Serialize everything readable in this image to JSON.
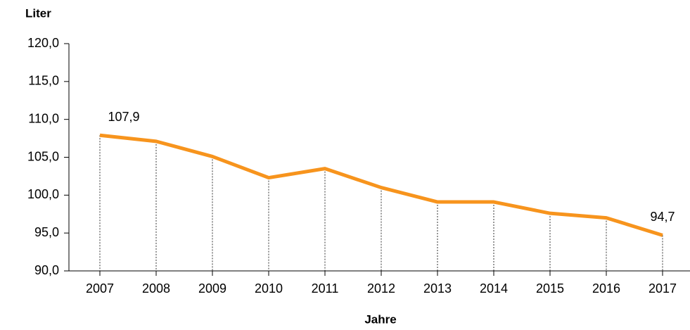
{
  "chart_data": {
    "type": "line",
    "y_label": "Liter",
    "x_label": "Jahre",
    "categories": [
      "2007",
      "2008",
      "2009",
      "2010",
      "2011",
      "2012",
      "2013",
      "2014",
      "2015",
      "2016",
      "2017"
    ],
    "series": [
      {
        "name": "Liter",
        "color": "#f7941d",
        "values": [
          107.9,
          107.1,
          105.1,
          102.3,
          103.5,
          101.0,
          99.1,
          99.1,
          97.6,
          97.0,
          94.7
        ],
        "value_labels": [
          "107,9",
          null,
          null,
          null,
          null,
          null,
          null,
          null,
          null,
          null,
          "94,7"
        ]
      }
    ],
    "ylim": [
      90,
      120
    ],
    "yticks": [
      {
        "value": 90,
        "label": "90,0"
      },
      {
        "value": 95,
        "label": "95,0"
      },
      {
        "value": 100,
        "label": "100,0"
      },
      {
        "value": 105,
        "label": "105,0"
      },
      {
        "value": 110,
        "label": "110,0"
      },
      {
        "value": 115,
        "label": "115,0"
      },
      {
        "value": 120,
        "label": "120,0"
      }
    ],
    "drop_lines": true
  }
}
